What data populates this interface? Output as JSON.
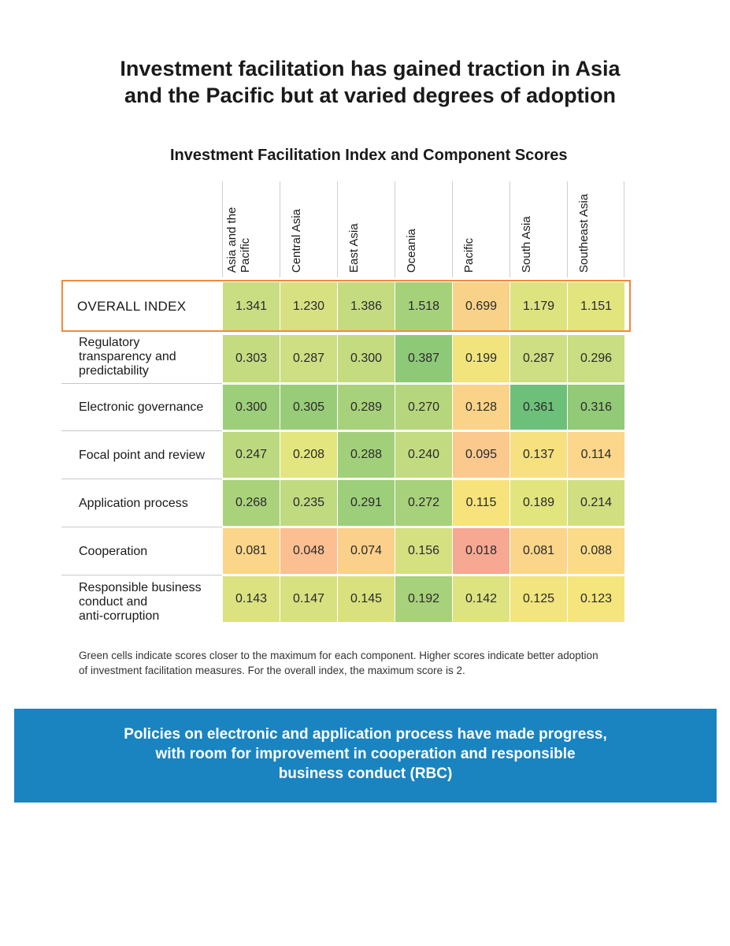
{
  "title_line1": "Investment facilitation has gained traction in Asia",
  "title_line2": "and the Pacific but at varied degrees of adoption",
  "chart_data": {
    "type": "table",
    "title": "Investment Facilitation Index and Component Scores",
    "columns": [
      "Asia and the Pacific",
      "Central Asia",
      "East Asia",
      "Oceania",
      "Pacific",
      "South Asia",
      "Southeast Asia"
    ],
    "rows": [
      {
        "label": "OVERALL INDEX",
        "values": [
          "1.341",
          "1.230",
          "1.386",
          "1.518",
          "0.699",
          "1.179",
          "1.151"
        ],
        "colors": [
          "#c9dd82",
          "#d7e182",
          "#c4db80",
          "#a6d17b",
          "#f8d288",
          "#dde37f",
          "#e2e57e"
        ]
      },
      {
        "label": "Regulatory transparency and predictability",
        "values": [
          "0.303",
          "0.287",
          "0.300",
          "0.387",
          "0.199",
          "0.287",
          "0.296"
        ],
        "colors": [
          "#c4db80",
          "#cede82",
          "#c4db80",
          "#8ec977",
          "#f1e47d",
          "#cede82",
          "#c9dd82"
        ]
      },
      {
        "label": "Electronic governance",
        "values": [
          "0.300",
          "0.305",
          "0.289",
          "0.270",
          "0.128",
          "0.361",
          "0.316"
        ],
        "colors": [
          "#9dce79",
          "#98cc78",
          "#a8d17b",
          "#b6d67e",
          "#fad389",
          "#6dc07a",
          "#92ca77"
        ]
      },
      {
        "label": "Focal point and review",
        "values": [
          "0.247",
          "0.208",
          "0.288",
          "0.240",
          "0.095",
          "0.137",
          "0.114"
        ],
        "colors": [
          "#bcd97f",
          "#e3e57f",
          "#a2d07a",
          "#c3db80",
          "#fbc98e",
          "#f6e080",
          "#fcd68a"
        ]
      },
      {
        "label": "Application process",
        "values": [
          "0.268",
          "0.235",
          "0.291",
          "0.272",
          "0.115",
          "0.189",
          "0.214"
        ],
        "colors": [
          "#a9d27b",
          "#c0da80",
          "#9dce79",
          "#a8d17b",
          "#f7e37c",
          "#e2e57e",
          "#d1df81"
        ]
      },
      {
        "label": "Cooperation",
        "values": [
          "0.081",
          "0.048",
          "0.074",
          "0.156",
          "0.018",
          "0.081",
          "0.088"
        ],
        "colors": [
          "#fbd58a",
          "#fbbf91",
          "#fbd08a",
          "#d5e081",
          "#f7a892",
          "#fbd58a",
          "#fbdb88"
        ]
      },
      {
        "label": "Responsible business conduct and anti-corruption",
        "values": [
          "0.143",
          "0.147",
          "0.145",
          "0.192",
          "0.142",
          "0.125",
          "0.123"
        ],
        "colors": [
          "#dbe27f",
          "#d8e180",
          "#d9e17f",
          "#a8d17b",
          "#dde37f",
          "#f2e47e",
          "#f5e57d"
        ]
      }
    ]
  },
  "label_lines": {
    "asia_pacific_1": "Asia and the",
    "asia_pacific_2": "Pacific",
    "regulatory_1": "Regulatory",
    "regulatory_2": "transparency and",
    "regulatory_3": "predictability",
    "rbc_1": "Responsible business",
    "rbc_2": "conduct and",
    "rbc_3": "anti-corruption"
  },
  "footnote_line1": "Green cells indicate scores closer to the maximum for each component. Higher scores indicate better adoption",
  "footnote_line2": "of investment facilitation measures. For the overall index, the maximum score is 2.",
  "banner_line1": "Policies on electronic and application process have made progress,",
  "banner_line2": "with room for improvement in cooperation and responsible",
  "banner_line3": "business conduct (RBC)"
}
